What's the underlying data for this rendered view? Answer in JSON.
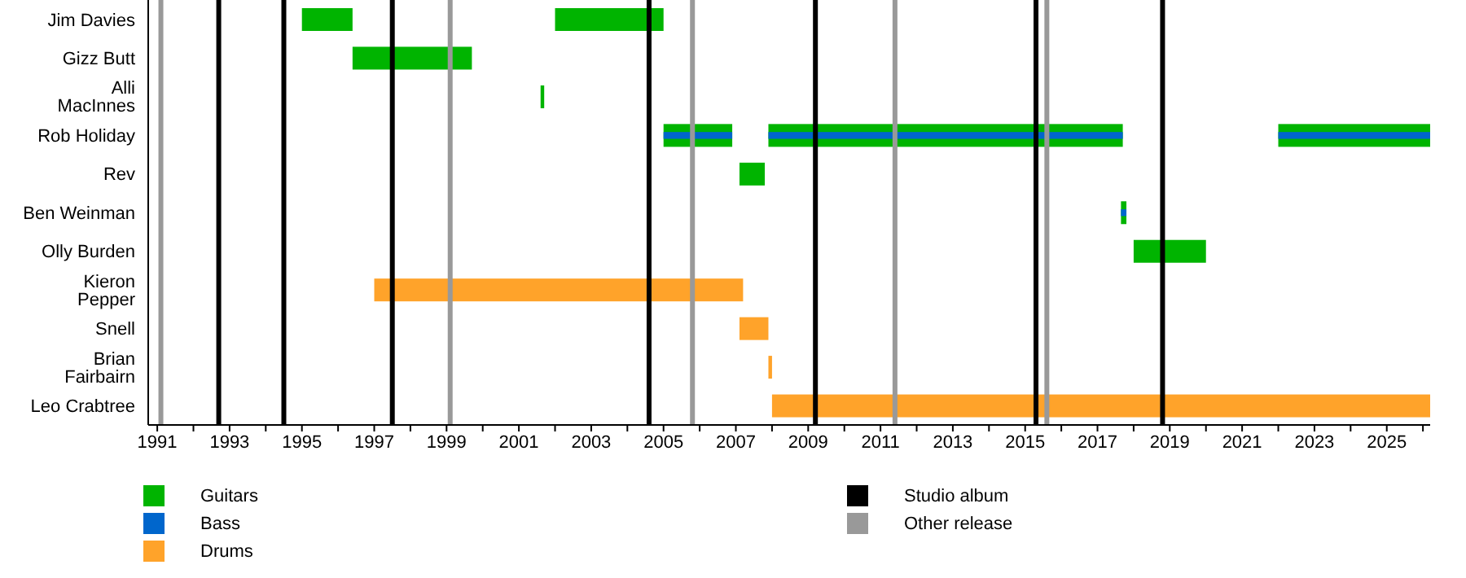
{
  "chart_data": {
    "type": "bar",
    "orientation": "horizontal",
    "categories": [
      "Jim Davies",
      "Gizz Butt",
      "Alli MacInnes",
      "Rob Holiday",
      "Rev",
      "Ben Weinman",
      "Olly Burden",
      "Kieron Pepper",
      "Snell",
      "Brian Fairbairn",
      "Leo Crabtree"
    ],
    "series": [
      {
        "name": "Guitars",
        "color": "#00b400",
        "base": [
          1995.0,
          1996.4,
          2001.6,
          2005.0,
          2007.1,
          2017.65,
          2018.0,
          null,
          null,
          null,
          null
        ],
        "values": [
          1.4,
          3.3,
          0.1,
          1.9,
          0.7,
          0.15,
          2.0,
          null,
          null,
          null,
          null
        ]
      },
      {
        "color": "#00b400",
        "base": [
          2002.0,
          null,
          null,
          2007.9,
          null,
          null,
          null,
          null,
          null,
          null,
          null
        ],
        "values": [
          3.0,
          null,
          null,
          9.8,
          null,
          null,
          null,
          null,
          null,
          null,
          null
        ]
      },
      {
        "color": "#00b400",
        "base": [
          null,
          null,
          null,
          2022.0,
          null,
          null,
          null,
          null,
          null,
          null,
          null
        ],
        "values": [
          null,
          null,
          null,
          4.2,
          null,
          null,
          null,
          null,
          null,
          null,
          null
        ]
      },
      {
        "name": "Bass",
        "color": "#0066cc",
        "base": [
          null,
          null,
          null,
          2005.0,
          null,
          2017.65,
          null,
          null,
          null,
          null,
          null
        ],
        "values": [
          null,
          null,
          null,
          1.9,
          null,
          0.15,
          null,
          null,
          null,
          null,
          null
        ]
      },
      {
        "color": "#0066cc",
        "base": [
          null,
          null,
          null,
          2007.9,
          null,
          null,
          null,
          null,
          null,
          null,
          null
        ],
        "values": [
          null,
          null,
          null,
          9.8,
          null,
          null,
          null,
          null,
          null,
          null,
          null
        ]
      },
      {
        "color": "#0066cc",
        "base": [
          null,
          null,
          null,
          2022.0,
          null,
          null,
          null,
          null,
          null,
          null,
          null
        ],
        "values": [
          null,
          null,
          null,
          4.2,
          null,
          null,
          null,
          null,
          null,
          null,
          null
        ]
      },
      {
        "name": "Drums",
        "color": "#ffa32a",
        "base": [
          null,
          null,
          null,
          null,
          null,
          null,
          null,
          1997.0,
          2007.1,
          2007.9,
          2008.0
        ],
        "values": [
          null,
          null,
          null,
          null,
          null,
          null,
          null,
          10.2,
          0.8,
          0.1,
          18.2
        ]
      }
    ],
    "xlim": [
      1990.75,
      2026.2
    ],
    "xticks": [
      1991,
      {
        "value": 1992,
        "label": null
      },
      1993,
      {
        "value": 1994,
        "label": null
      },
      1995,
      {
        "value": 1996,
        "label": null
      },
      1997,
      {
        "value": 1998,
        "label": null
      },
      1999,
      {
        "value": 2000,
        "label": null
      },
      2001,
      {
        "value": 2002,
        "label": null
      },
      2003,
      {
        "value": 2004,
        "label": null
      },
      2005,
      {
        "value": 2006,
        "label": null
      },
      2007,
      {
        "value": 2008,
        "label": null
      },
      2009,
      {
        "value": 2010,
        "label": null
      },
      2011,
      {
        "value": 2012,
        "label": null
      },
      2013,
      {
        "value": 2014,
        "label": null
      },
      2015,
      {
        "value": 2016,
        "label": null
      },
      2017,
      {
        "value": 2018,
        "label": null
      },
      2019,
      {
        "value": 2020,
        "label": null
      },
      2021,
      {
        "value": 2022,
        "label": null
      },
      2023,
      {
        "value": 2024,
        "label": null
      },
      2025,
      {
        "value": 2026,
        "label": null
      }
    ],
    "ref_lines": [
      {
        "axis": "x",
        "value": 1992.7,
        "label": "Studio album",
        "color": "#000000"
      },
      {
        "axis": "x",
        "value": 1991.1,
        "label": "Other release",
        "color": "#999999"
      },
      {
        "axis": "x",
        "value": 1994.5,
        "color": "#000000"
      },
      {
        "axis": "x",
        "value": 1997.5,
        "color": "#000000"
      },
      {
        "axis": "x",
        "value": 1999.1,
        "color": "#999999"
      },
      {
        "axis": "x",
        "value": 2004.6,
        "color": "#000000"
      },
      {
        "axis": "x",
        "value": 2005.8,
        "color": "#999999"
      },
      {
        "axis": "x",
        "value": 2009.2,
        "color": "#000000"
      },
      {
        "axis": "x",
        "value": 2011.4,
        "color": "#999999"
      },
      {
        "axis": "x",
        "value": 2015.3,
        "color": "#000000"
      },
      {
        "axis": "x",
        "value": 2015.6,
        "color": "#999999"
      },
      {
        "axis": "x",
        "value": 2018.8,
        "color": "#000000"
      }
    ],
    "legend": "bottom",
    "grid": false
  }
}
